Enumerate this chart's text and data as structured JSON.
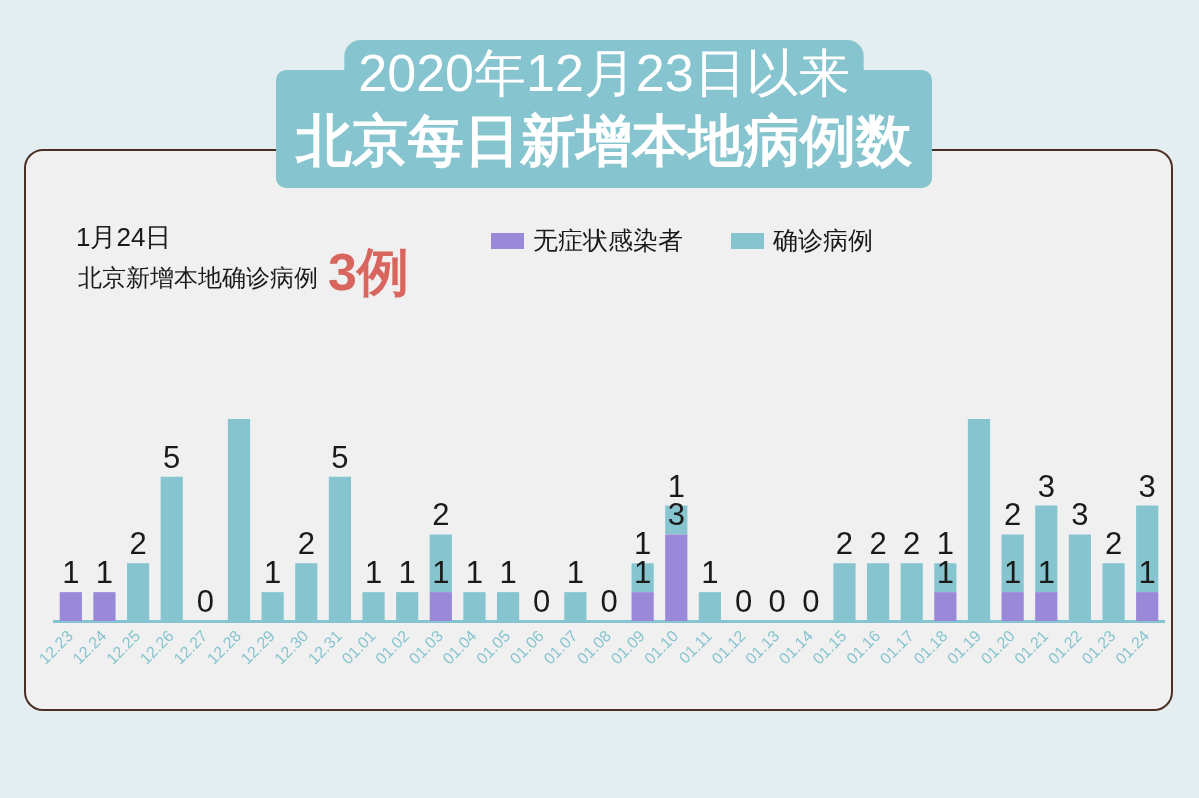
{
  "chart_data": {
    "type": "bar",
    "title": "2020年12月23日以来",
    "subtitle": "北京每日新增本地病例数",
    "annotations": [
      "1月24日",
      "北京新增本地确诊病例",
      "3例"
    ],
    "categories": [
      "12.23",
      "12.24",
      "12.25",
      "12.26",
      "12.27",
      "12.28",
      "12.29",
      "12.30",
      "12.31",
      "01.01",
      "01.02",
      "01.03",
      "01.04",
      "01.05",
      "01.06",
      "01.07",
      "01.08",
      "01.09",
      "01.10",
      "01.11",
      "01.12",
      "01.13",
      "01.14",
      "01.15",
      "01.16",
      "01.17",
      "01.18",
      "01.19",
      "01.20",
      "01.21",
      "01.22",
      "01.23",
      "01.24"
    ],
    "stacked": true,
    "series": [
      {
        "name": "无症状感染者",
        "color": "#9a89d8",
        "values": [
          1,
          1,
          0,
          0,
          0,
          0,
          0,
          0,
          0,
          0,
          0,
          1,
          0,
          0,
          0,
          0,
          0,
          1,
          3,
          0,
          0,
          0,
          0,
          0,
          0,
          0,
          1,
          0,
          1,
          1,
          0,
          0,
          1
        ],
        "value_labels": [
          "1",
          "1",
          null,
          null,
          null,
          null,
          null,
          null,
          null,
          null,
          null,
          "1",
          null,
          null,
          null,
          null,
          null,
          "1",
          "3",
          null,
          null,
          null,
          null,
          null,
          null,
          null,
          "1",
          null,
          "1",
          "1",
          null,
          null,
          "1"
        ]
      },
      {
        "name": "确诊病例",
        "color": "#86c5cf",
        "values": [
          0,
          0,
          2,
          5,
          0,
          7,
          1,
          2,
          5,
          1,
          1,
          2,
          1,
          1,
          0,
          1,
          0,
          1,
          1,
          1,
          0,
          0,
          0,
          2,
          2,
          2,
          1,
          7,
          2,
          3,
          3,
          2,
          3
        ],
        "value_labels": [
          null,
          null,
          "2",
          "5",
          "0",
          null,
          "1",
          "2",
          "5",
          "1",
          "1",
          "2",
          "1",
          "1",
          "0",
          "1",
          "0",
          "1",
          "1",
          "1",
          "0",
          "0",
          "0",
          "2",
          "2",
          "2",
          "1",
          null,
          "2",
          "3",
          "3",
          "2",
          "3"
        ]
      }
    ],
    "tick_labels": "x",
    "legend": "top"
  }
}
